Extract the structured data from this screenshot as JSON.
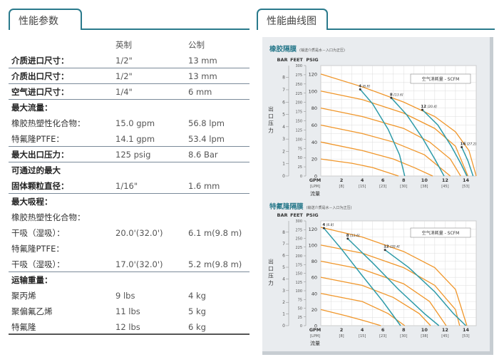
{
  "left_tab": {
    "label": "性能参数"
  },
  "right_tab": {
    "label": "性能曲线图"
  },
  "table": {
    "header": {
      "imperial": "英制",
      "metric": "公制"
    },
    "rows": [
      {
        "label": "介质进口尺寸：",
        "imperial": "1/2\"",
        "metric": "13 mm",
        "bold": true,
        "sep": true
      },
      {
        "label": "介质出口尺寸：",
        "imperial": "1/2\"",
        "metric": "13 mm",
        "bold": true,
        "sep": true
      },
      {
        "label": "空气进口尺寸：",
        "imperial": "1/4\"",
        "metric": "6 mm",
        "bold": true,
        "sep": true
      },
      {
        "label": "最大流量：",
        "imperial": "",
        "metric": "",
        "bold": true,
        "sep": false
      },
      {
        "label": "橡胶热塑性化合物：",
        "imperial": "15.0 gpm",
        "metric": "56.8 lpm",
        "bold": false,
        "sep": false
      },
      {
        "label": "特氟隆PTFE：",
        "imperial": "14.1 gpm",
        "metric": "53.4 lpm",
        "bold": false,
        "sep": true
      },
      {
        "label": "最大出口压力：",
        "imperial": "125 psig",
        "metric": "8.6 Bar",
        "bold": true,
        "sep": true
      },
      {
        "label": "可通过的最大",
        "imperial": "",
        "metric": "",
        "bold": true,
        "sep": false
      },
      {
        "label": "固体颗粒直径：",
        "imperial": "1/16\"",
        "metric": "1.6 mm",
        "bold": true,
        "sep": true
      },
      {
        "label": "最大吸程：",
        "imperial": "",
        "metric": "",
        "bold": true,
        "sep": false
      },
      {
        "label": "橡胶热塑性化合物：",
        "imperial": "",
        "metric": "",
        "bold": false,
        "sep": false
      },
      {
        "label": "干吸（湿吸）：",
        "imperial": "20.0'(32.0')",
        "metric": "6.1 m(9.8 m)",
        "bold": false,
        "sep": false
      },
      {
        "label": "特氟隆PTFE：",
        "imperial": "",
        "metric": "",
        "bold": false,
        "sep": false
      },
      {
        "label": "干吸（湿吸）：",
        "imperial": "17.0'(32.0')",
        "metric": "5.2 m(9.8 m)",
        "bold": false,
        "sep": true
      },
      {
        "label": "运输重量：",
        "imperial": "",
        "metric": "",
        "bold": true,
        "sep": false
      },
      {
        "label": "聚丙烯",
        "imperial": "9 lbs",
        "metric": "4 kg",
        "bold": false,
        "sep": false
      },
      {
        "label": "聚偏氟乙烯",
        "imperial": "11 lbs",
        "metric": "5 kg",
        "bold": false,
        "sep": false
      },
      {
        "label": "特氟隆",
        "imperial": "12 lbs",
        "metric": "6 kg",
        "bold": false,
        "sep": "thick"
      }
    ]
  },
  "colors": {
    "accent": "#2a7a8c",
    "orange": "#f0962a",
    "teal": "#2c9aa8"
  },
  "chart_data": [
    {
      "type": "line",
      "title": "橡胶隔膜",
      "subtitle": "(输送介质是水－入口为正压)",
      "ylabel": "出口压力",
      "col_headers": [
        "BAR",
        "FEET",
        "PSIG"
      ],
      "xlabel": "流量",
      "x_unit": "GPM",
      "x_ticks": [
        {
          "gpm": "2",
          "lpm": "[8]"
        },
        {
          "gpm": "4",
          "lpm": "[15]"
        },
        {
          "gpm": "6",
          "lpm": "[23]"
        },
        {
          "gpm": "8",
          "lpm": "[30]"
        },
        {
          "gpm": "10",
          "lpm": "[38]"
        },
        {
          "gpm": "12",
          "lpm": "[45]"
        },
        {
          "gpm": "14",
          "lpm": "[53]"
        }
      ],
      "psig_ticks": [
        "120",
        "100",
        "80",
        "60",
        "40",
        "20",
        "0"
      ],
      "feet_ticks": [
        "300",
        "275",
        "250",
        "225",
        "200",
        "175",
        "150",
        "125",
        "100",
        "75",
        "50",
        "25",
        "0"
      ],
      "bar_ticks": [
        "8",
        "7",
        "6",
        "5",
        "4",
        "3",
        "2",
        "1",
        "0"
      ],
      "legend": "空气消耗量 - SCFM",
      "xlim": [
        0,
        15
      ],
      "ylim": [
        0,
        130
      ],
      "pressure_curves": [
        {
          "values": [
            [
              0,
              120
            ],
            [
              4,
              105
            ],
            [
              8,
              87
            ],
            [
              11,
              70
            ],
            [
              13,
              52
            ],
            [
              14.3,
              30
            ],
            [
              15,
              0
            ]
          ]
        },
        {
          "values": [
            [
              0,
              100
            ],
            [
              4,
              90
            ],
            [
              8,
              74
            ],
            [
              11,
              56
            ],
            [
              13,
              35
            ],
            [
              14.2,
              0
            ]
          ]
        },
        {
          "values": [
            [
              0,
              80
            ],
            [
              4,
              70
            ],
            [
              8,
              56
            ],
            [
              10.5,
              40
            ],
            [
              12.5,
              20
            ],
            [
              13.5,
              0
            ]
          ]
        },
        {
          "values": [
            [
              0,
              60
            ],
            [
              4,
              50
            ],
            [
              7,
              40
            ],
            [
              10,
              25
            ],
            [
              12.5,
              0
            ]
          ]
        },
        {
          "values": [
            [
              0,
              40
            ],
            [
              4,
              30
            ],
            [
              7,
              20
            ],
            [
              9,
              10
            ],
            [
              10.8,
              0
            ]
          ]
        },
        {
          "values": [
            [
              0,
              20
            ],
            [
              3,
              15
            ],
            [
              5,
              10
            ],
            [
              7.5,
              0
            ]
          ]
        }
      ],
      "air_curves": [
        {
          "label": "4",
          "metric_label": "[6.8]",
          "values": [
            [
              3.8,
              102
            ],
            [
              5,
              85
            ],
            [
              6.5,
              55
            ],
            [
              7.6,
              25
            ],
            [
              8.1,
              0
            ]
          ]
        },
        {
          "label": "8",
          "metric_label": "[13.6]",
          "values": [
            [
              6.8,
              92
            ],
            [
              8.3,
              72
            ],
            [
              9.8,
              45
            ],
            [
              11,
              20
            ],
            [
              11.9,
              0
            ]
          ]
        },
        {
          "label": "12",
          "metric_label": "[20.4]",
          "values": [
            [
              9.8,
              78
            ],
            [
              11.3,
              60
            ],
            [
              12.6,
              35
            ],
            [
              13.5,
              15
            ],
            [
              14.1,
              0
            ]
          ]
        },
        {
          "label": "16",
          "metric_label": "[27.2]",
          "values": [
            [
              13.6,
              34
            ],
            [
              14.2,
              18
            ],
            [
              14.7,
              0
            ]
          ]
        }
      ]
    },
    {
      "type": "line",
      "title": "特氟隆隔膜",
      "subtitle": "(输送介质是水－入口为正压)",
      "ylabel": "出口压力",
      "col_headers": [
        "BAR",
        "FEET",
        "PSIG"
      ],
      "xlabel": "流量",
      "x_unit": "GPM",
      "x_ticks": [
        {
          "gpm": "2",
          "lpm": "[8]"
        },
        {
          "gpm": "4",
          "lpm": "[15]"
        },
        {
          "gpm": "6",
          "lpm": "[23]"
        },
        {
          "gpm": "8",
          "lpm": "[30]"
        },
        {
          "gpm": "10",
          "lpm": "[38]"
        },
        {
          "gpm": "12",
          "lpm": "[45]"
        },
        {
          "gpm": "14",
          "lpm": "[53]"
        }
      ],
      "psig_ticks": [
        "120",
        "100",
        "80",
        "60",
        "40",
        "20",
        "0"
      ],
      "feet_ticks": [
        "300",
        "275",
        "250",
        "225",
        "200",
        "175",
        "150",
        "125",
        "100",
        "75",
        "50",
        "25",
        "0"
      ],
      "bar_ticks": [
        "8",
        "7",
        "6",
        "5",
        "4",
        "3",
        "2",
        "1",
        "0"
      ],
      "legend": "空气消耗量 - SCFM",
      "xlim": [
        0,
        15
      ],
      "ylim": [
        0,
        130
      ],
      "pressure_curves": [
        {
          "values": [
            [
              0,
              122
            ],
            [
              4,
              110
            ],
            [
              8,
              92
            ],
            [
              11,
              72
            ],
            [
              13,
              45
            ],
            [
              14.1,
              0
            ]
          ]
        },
        {
          "values": [
            [
              0,
              100
            ],
            [
              4,
              90
            ],
            [
              8,
              72
            ],
            [
              11,
              50
            ],
            [
              13,
              20
            ],
            [
              13.4,
              0
            ]
          ]
        },
        {
          "values": [
            [
              0,
              80
            ],
            [
              4,
              70
            ],
            [
              8,
              52
            ],
            [
              10.5,
              30
            ],
            [
              12.1,
              0
            ]
          ]
        },
        {
          "values": [
            [
              0,
              60
            ],
            [
              4,
              50
            ],
            [
              7,
              35
            ],
            [
              9.5,
              15
            ],
            [
              10.6,
              0
            ]
          ]
        },
        {
          "values": [
            [
              0,
              40
            ],
            [
              4,
              30
            ],
            [
              6.5,
              15
            ],
            [
              8.1,
              0
            ]
          ]
        },
        {
          "values": [
            [
              0,
              20
            ],
            [
              2.5,
              12
            ],
            [
              4.5,
              5
            ],
            [
              5.8,
              0
            ]
          ]
        }
      ],
      "air_curves": [
        {
          "label": "4",
          "metric_label": "[6.8]",
          "values": [
            [
              0.3,
              121
            ],
            [
              2,
              95
            ],
            [
              4,
              62
            ],
            [
              6,
              30
            ],
            [
              7.7,
              0
            ]
          ]
        },
        {
          "label": "8",
          "metric_label": "[13.6]",
          "values": [
            [
              2.6,
              108
            ],
            [
              5,
              78
            ],
            [
              7.5,
              45
            ],
            [
              10,
              15
            ],
            [
              11.4,
              0
            ]
          ]
        },
        {
          "label": "12",
          "metric_label": "[20.4]",
          "values": [
            [
              6.2,
              94
            ],
            [
              8.5,
              72
            ],
            [
              11,
              42
            ],
            [
              12.8,
              15
            ],
            [
              14,
              0
            ]
          ]
        }
      ]
    }
  ]
}
